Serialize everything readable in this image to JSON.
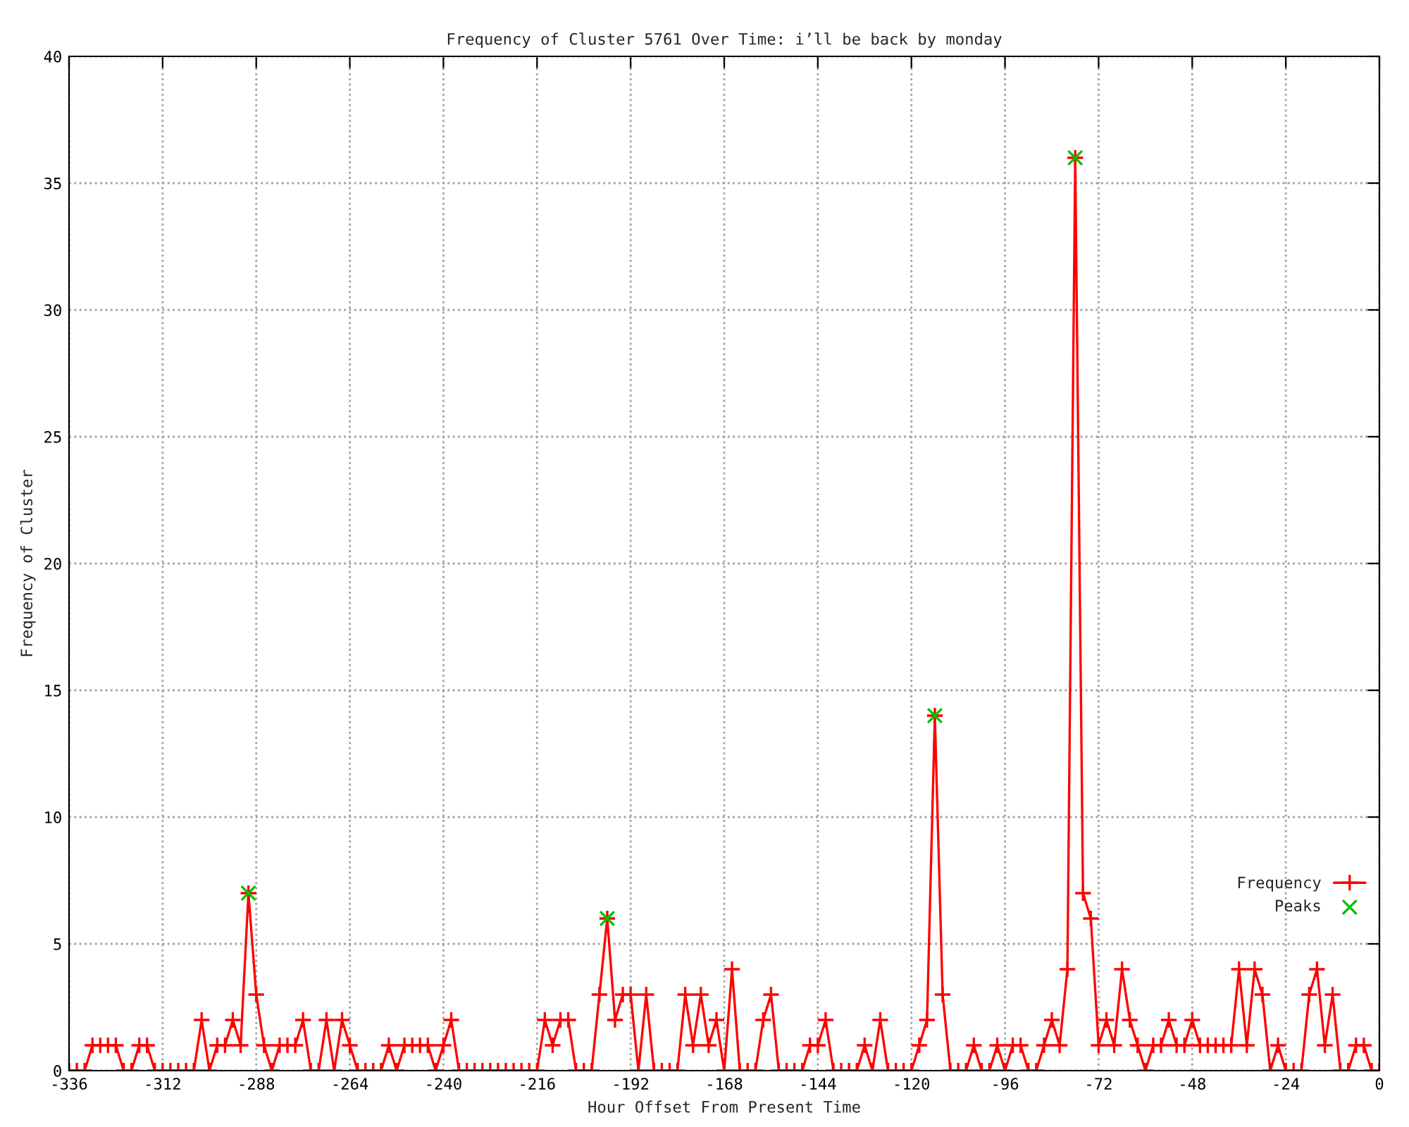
{
  "chart_data": {
    "type": "line",
    "title": "Frequency of Cluster 5761 Over Time: i’ll be back by monday",
    "xlabel": "Hour Offset From Present Time",
    "ylabel": "Frequency of Cluster",
    "xlim": [
      -336,
      0
    ],
    "xticks": [
      -336,
      -312,
      -288,
      -264,
      -240,
      -216,
      -192,
      -168,
      -144,
      -120,
      -96,
      -72,
      -48,
      -24,
      0
    ],
    "ylim": [
      0,
      40
    ],
    "yticks": [
      0,
      5,
      10,
      15,
      20,
      25,
      30,
      35,
      40
    ],
    "grid": true,
    "legend": "bottom right",
    "series": [
      {
        "name": "Frequency",
        "color": "#ff0000",
        "marker": "cross",
        "x": [
          -336,
          -334,
          -332,
          -330,
          -328,
          -326,
          -324,
          -322,
          -320,
          -318,
          -316,
          -314,
          -312,
          -310,
          -308,
          -306,
          -304,
          -302,
          -300,
          -298,
          -296,
          -294,
          -292,
          -290,
          -288,
          -286,
          -284,
          -282,
          -280,
          -278,
          -276,
          -274,
          -272,
          -270,
          -268,
          -266,
          -264,
          -262,
          -260,
          -258,
          -256,
          -254,
          -252,
          -250,
          -248,
          -246,
          -244,
          -242,
          -240,
          -238,
          -236,
          -234,
          -232,
          -230,
          -228,
          -226,
          -224,
          -222,
          -220,
          -218,
          -216,
          -214,
          -212,
          -210,
          -208,
          -206,
          -204,
          -202,
          -200,
          -198,
          -196,
          -194,
          -192,
          -190,
          -188,
          -186,
          -184,
          -182,
          -180,
          -178,
          -176,
          -174,
          -172,
          -170,
          -168,
          -166,
          -164,
          -162,
          -160,
          -158,
          -156,
          -154,
          -152,
          -150,
          -148,
          -146,
          -144,
          -142,
          -140,
          -138,
          -136,
          -134,
          -132,
          -130,
          -128,
          -126,
          -124,
          -122,
          -120,
          -118,
          -116,
          -114,
          -112,
          -110,
          -108,
          -106,
          -104,
          -102,
          -100,
          -98,
          -96,
          -94,
          -92,
          -90,
          -88,
          -86,
          -84,
          -82,
          -80,
          -78,
          -76,
          -74,
          -72,
          -70,
          -68,
          -66,
          -64,
          -62,
          -60,
          -58,
          -56,
          -54,
          -52,
          -50,
          -48,
          -46,
          -44,
          -42,
          -40,
          -38,
          -36,
          -34,
          -32,
          -30,
          -28,
          -26,
          -24,
          -22,
          -20,
          -18,
          -16,
          -14,
          -12,
          -10,
          -8,
          -6,
          -4,
          -2,
          0
        ],
        "values": [
          0,
          0,
          0,
          1,
          1,
          1,
          1,
          0,
          0,
          1,
          1,
          0,
          0,
          0,
          0,
          0,
          0,
          2,
          0,
          1,
          1,
          2,
          1,
          7,
          3,
          1,
          0,
          1,
          1,
          1,
          2,
          0,
          0,
          2,
          0,
          2,
          1,
          0,
          0,
          0,
          0,
          1,
          0,
          1,
          1,
          1,
          1,
          0,
          1,
          2,
          0,
          0,
          0,
          0,
          0,
          0,
          0,
          0,
          0,
          0,
          0,
          2,
          1,
          2,
          2,
          0,
          0,
          0,
          3,
          6,
          2,
          3,
          3,
          0,
          3,
          0,
          0,
          0,
          0,
          3,
          1,
          3,
          1,
          2,
          0,
          4,
          0,
          0,
          0,
          2,
          3,
          0,
          0,
          0,
          0,
          1,
          1,
          2,
          0,
          0,
          0,
          0,
          1,
          0,
          2,
          0,
          0,
          0,
          0,
          1,
          2,
          14,
          3,
          0,
          0,
          0,
          1,
          0,
          0,
          1,
          0,
          1,
          1,
          0,
          0,
          1,
          2,
          1,
          4,
          36,
          7,
          6,
          1,
          2,
          1,
          4,
          2,
          1,
          0,
          1,
          1,
          2,
          1,
          1,
          2,
          1,
          1,
          1,
          1,
          1,
          4,
          1,
          4,
          3,
          0,
          1,
          0,
          0,
          0,
          3,
          4,
          1,
          3,
          0,
          0,
          1,
          1,
          0,
          0
        ]
      },
      {
        "name": "Peaks",
        "type": "scatter",
        "color": "#00c000",
        "marker": "cross",
        "x": [
          -290,
          -198,
          -114,
          -78
        ],
        "values": [
          7,
          6,
          14,
          36
        ]
      }
    ]
  }
}
